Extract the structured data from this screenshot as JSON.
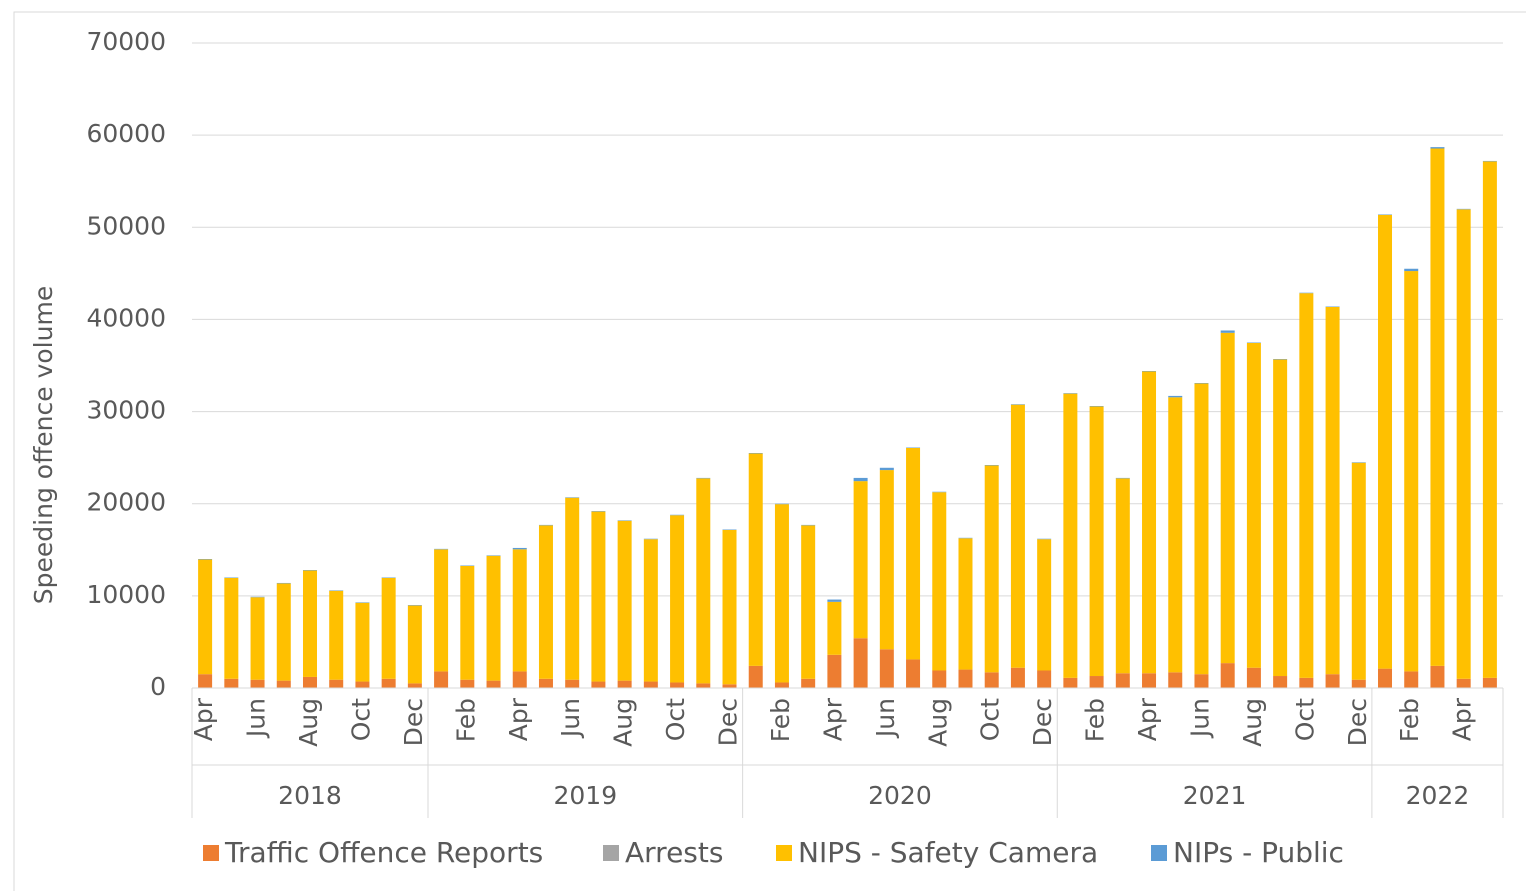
{
  "chart_data": {
    "type": "stacked_bar",
    "ylabel": "Speeding offence volume",
    "categories": [
      "Apr",
      null,
      "Jun",
      null,
      "Aug",
      null,
      "Oct",
      null,
      "Dec",
      null,
      "Feb",
      null,
      "Apr",
      null,
      "Jun",
      null,
      "Aug",
      null,
      "Oct",
      null,
      "Dec",
      null,
      "Feb",
      null,
      "Apr",
      null,
      "Jun",
      null,
      "Aug",
      null,
      "Oct",
      null,
      "Dec",
      null,
      "Feb",
      null,
      "Apr",
      null,
      "Jun",
      null,
      "Aug",
      null,
      "Oct",
      null,
      "Dec",
      null,
      "Feb",
      null,
      "Apr",
      null
    ],
    "year_groups": [
      {
        "label": "2018",
        "count": 9
      },
      {
        "label": "2019",
        "count": 12
      },
      {
        "label": "2020",
        "count": 12
      },
      {
        "label": "2021",
        "count": 12
      },
      {
        "label": "2022",
        "count": 5
      }
    ],
    "series": [
      {
        "name": "Traffic Offence Reports",
        "color": "#ED7D31",
        "values": [
          1500,
          1000,
          900,
          800,
          1200,
          900,
          700,
          1000,
          500,
          1800,
          900,
          800,
          1800,
          1000,
          900,
          700,
          800,
          700,
          600,
          500,
          400,
          2400,
          600,
          1000,
          3600,
          5400,
          4200,
          3100,
          1900,
          2000,
          1700,
          2200,
          1900,
          1100,
          1300,
          1600,
          1600,
          1700,
          1500,
          2700,
          2200,
          1300,
          1100,
          1500,
          900,
          2100,
          1800,
          2400,
          1000,
          1100
        ]
      },
      {
        "name": "Arrests",
        "color": "#A5A5A5",
        "values": [
          0,
          0,
          0,
          0,
          0,
          0,
          0,
          0,
          0,
          0,
          0,
          0,
          0,
          0,
          0,
          0,
          0,
          0,
          0,
          0,
          0,
          0,
          0,
          0,
          0,
          0,
          0,
          0,
          0,
          0,
          0,
          0,
          0,
          0,
          0,
          0,
          0,
          0,
          0,
          0,
          0,
          0,
          0,
          0,
          0,
          0,
          0,
          0,
          0,
          0
        ]
      },
      {
        "name": "NIPS - Safety Camera",
        "color": "#FFC000",
        "values": [
          12450,
          10950,
          8950,
          10550,
          11550,
          9650,
          8550,
          10950,
          8450,
          13250,
          12350,
          13550,
          13250,
          16650,
          19750,
          18450,
          17350,
          15450,
          18150,
          22250,
          16750,
          23050,
          19350,
          16650,
          5750,
          17050,
          19450,
          22950,
          19350,
          14250,
          22450,
          28550,
          14250,
          30850,
          29250,
          21150,
          32750,
          29850,
          31550,
          35850,
          35250,
          34350,
          41750,
          39850,
          23550,
          49250,
          43450,
          56150,
          50950,
          56050
        ]
      },
      {
        "name": "NIPs - Public",
        "color": "#5B9BD5",
        "values": [
          50,
          50,
          50,
          50,
          50,
          50,
          50,
          50,
          50,
          50,
          50,
          50,
          150,
          50,
          50,
          50,
          50,
          50,
          50,
          50,
          50,
          50,
          50,
          50,
          250,
          350,
          250,
          50,
          50,
          50,
          50,
          50,
          50,
          50,
          50,
          50,
          50,
          150,
          50,
          250,
          50,
          50,
          50,
          50,
          50,
          50,
          250,
          150,
          50,
          50
        ]
      }
    ],
    "ylim": [
      0,
      70000
    ],
    "yticks": [
      0,
      10000,
      20000,
      30000,
      40000,
      50000,
      60000,
      70000
    ],
    "grid": true,
    "legend": "bottom"
  }
}
